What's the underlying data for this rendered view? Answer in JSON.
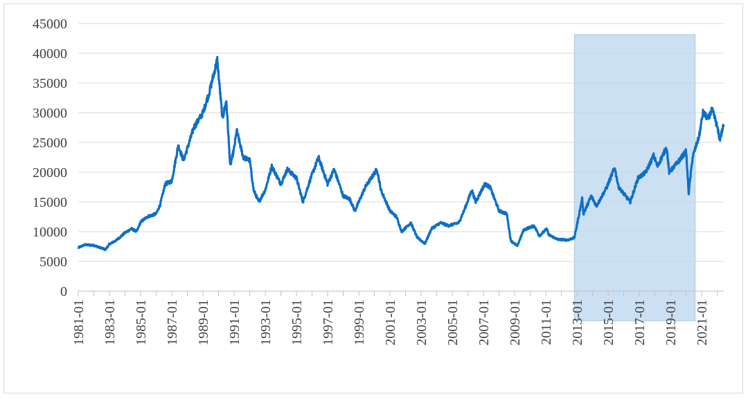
{
  "chart_data": {
    "type": "line",
    "title": "",
    "xlabel": "",
    "ylabel": "",
    "ylim": [
      0,
      45000
    ],
    "yticks": [
      0,
      5000,
      10000,
      15000,
      20000,
      25000,
      30000,
      35000,
      40000,
      45000
    ],
    "xlim": [
      "1981-01",
      "2022-06"
    ],
    "xtick_labels": [
      "1981-01",
      "1983-01",
      "1985-01",
      "1987-01",
      "1989-01",
      "1991-01",
      "1993-01",
      "1995-01",
      "1997-01",
      "1999-01",
      "2001-01",
      "2003-01",
      "2005-01",
      "2007-01",
      "2009-01",
      "2011-01",
      "2013-01",
      "2015-01",
      "2017-01",
      "2019-01",
      "2021-01"
    ],
    "grid": true,
    "legend": "none",
    "shaded_region": {
      "start": "2012-11",
      "end": "2020-08",
      "color": "#bdd7ee"
    },
    "series": [
      {
        "color": "#0f6fc6",
        "points": [
          [
            "1981-01",
            7300
          ],
          [
            "1981-06",
            7800
          ],
          [
            "1982-01",
            7700
          ],
          [
            "1982-06",
            7300
          ],
          [
            "1982-10",
            7000
          ],
          [
            "1983-01",
            7900
          ],
          [
            "1983-06",
            8500
          ],
          [
            "1984-01",
            9800
          ],
          [
            "1984-06",
            10500
          ],
          [
            "1984-10",
            10000
          ],
          [
            "1985-01",
            11600
          ],
          [
            "1985-06",
            12500
          ],
          [
            "1986-01",
            13000
          ],
          [
            "1986-04",
            14500
          ],
          [
            "1986-08",
            18000
          ],
          [
            "1987-01",
            18500
          ],
          [
            "1987-06",
            24500
          ],
          [
            "1987-10",
            22000
          ],
          [
            "1988-01",
            24000
          ],
          [
            "1988-06",
            27500
          ],
          [
            "1989-01",
            30000
          ],
          [
            "1989-06",
            33500
          ],
          [
            "1989-12",
            38900
          ],
          [
            "1990-04",
            29000
          ],
          [
            "1990-07",
            32000
          ],
          [
            "1990-10",
            21000
          ],
          [
            "1991-01",
            24000
          ],
          [
            "1991-03",
            27000
          ],
          [
            "1991-08",
            22500
          ],
          [
            "1992-01",
            22000
          ],
          [
            "1992-04",
            17000
          ],
          [
            "1992-08",
            15000
          ],
          [
            "1993-01",
            17000
          ],
          [
            "1993-06",
            21000
          ],
          [
            "1994-01",
            18000
          ],
          [
            "1994-06",
            20500
          ],
          [
            "1995-01",
            19000
          ],
          [
            "1995-06",
            15000
          ],
          [
            "1995-12",
            19000
          ],
          [
            "1996-06",
            22500
          ],
          [
            "1997-01",
            18000
          ],
          [
            "1997-06",
            20500
          ],
          [
            "1998-01",
            16000
          ],
          [
            "1998-06",
            15500
          ],
          [
            "1998-10",
            13500
          ],
          [
            "1999-06",
            17500
          ],
          [
            "2000-03",
            20500
          ],
          [
            "2000-06",
            17000
          ],
          [
            "2001-01",
            13500
          ],
          [
            "2001-06",
            12500
          ],
          [
            "2001-10",
            10000
          ],
          [
            "2002-05",
            11500
          ],
          [
            "2002-10",
            9000
          ],
          [
            "2003-04",
            8000
          ],
          [
            "2003-09",
            10500
          ],
          [
            "2004-04",
            11500
          ],
          [
            "2004-10",
            11000
          ],
          [
            "2005-06",
            11500
          ],
          [
            "2005-10",
            13500
          ],
          [
            "2006-04",
            17000
          ],
          [
            "2006-07",
            15000
          ],
          [
            "2007-02",
            18000
          ],
          [
            "2007-06",
            17500
          ],
          [
            "2008-01",
            13500
          ],
          [
            "2008-07",
            13000
          ],
          [
            "2008-10",
            8500
          ],
          [
            "2009-03",
            7600
          ],
          [
            "2009-08",
            10300
          ],
          [
            "2010-04",
            11000
          ],
          [
            "2010-08",
            9300
          ],
          [
            "2011-02",
            10500
          ],
          [
            "2011-03",
            9500
          ],
          [
            "2011-10",
            8700
          ],
          [
            "2012-06",
            8600
          ],
          [
            "2012-11",
            9000
          ],
          [
            "2013-05",
            15500
          ],
          [
            "2013-06",
            13000
          ],
          [
            "2013-12",
            16000
          ],
          [
            "2014-04",
            14300
          ],
          [
            "2014-12",
            17500
          ],
          [
            "2015-06",
            20800
          ],
          [
            "2015-09",
            17500
          ],
          [
            "2016-06",
            15000
          ],
          [
            "2016-12",
            19000
          ],
          [
            "2017-06",
            20000
          ],
          [
            "2017-12",
            22800
          ],
          [
            "2018-03",
            21000
          ],
          [
            "2018-10",
            24200
          ],
          [
            "2018-12",
            20000
          ],
          [
            "2019-06",
            21500
          ],
          [
            "2020-01",
            23500
          ],
          [
            "2020-03",
            16500
          ],
          [
            "2020-06",
            22500
          ],
          [
            "2020-11",
            26000
          ],
          [
            "2021-02",
            30000
          ],
          [
            "2021-06",
            29000
          ],
          [
            "2021-09",
            30500
          ],
          [
            "2021-12",
            28500
          ],
          [
            "2022-03",
            25500
          ],
          [
            "2022-06",
            28000
          ]
        ]
      }
    ]
  }
}
